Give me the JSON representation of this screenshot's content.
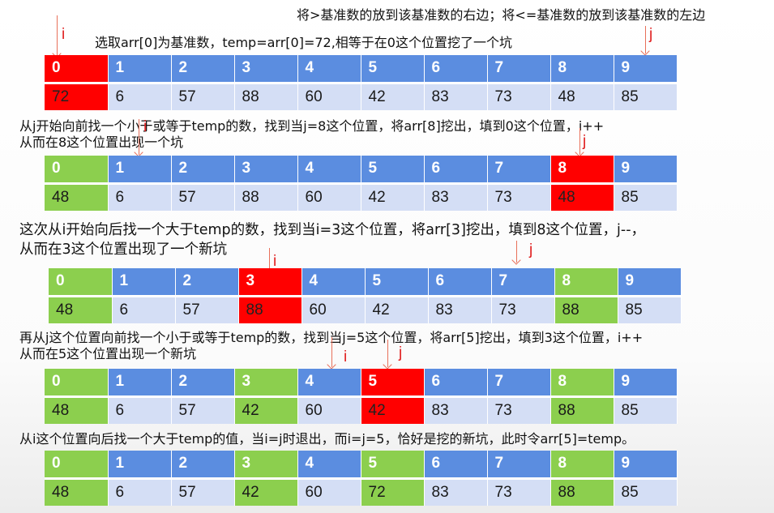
{
  "texts": {
    "t0": "将>基准数的放到该基准数的右边；将<=基准数的放到该基准数的左边",
    "t1": "选取arr[0]为基准数，temp=arr[0]=72,相等于在0这个位置挖了一个坑",
    "t2a": "从j开始向前找一个小于或等于temp的数，找到当j=8这个位置，将arr[8]挖出，填到0这个位置，i++",
    "t2b": "从而在8这个位置出现一个坑",
    "t3a": "这次从i开始向后找一个大于temp的数，找到当i=3这个位置，将arr[3]挖出，填到8这个位置，j--，",
    "t3b": "从而在3这个位置出现了一个新坑",
    "t4a": "再从j这个位置向前找一个小于或等于temp的数，找到当j=5这个位置，将arr[5]挖出，填到3这个位置，i++",
    "t4b": "从而在5这个位置出现一个新坑",
    "t5": "从i这个位置向后找一个大于temp的值，当i=j时退出，而i=j=5，恰好是挖的新坑，此时令arr[5]=temp。"
  },
  "pointer_labels": {
    "i": "i",
    "j": "j"
  },
  "colors": {
    "index_blue": "#5b8de0",
    "value_light": "#d4def5",
    "highlight_red": "#ff0000",
    "filled_green": "#8ccf4e"
  },
  "indices": [
    "0",
    "1",
    "2",
    "3",
    "4",
    "5",
    "6",
    "7",
    "8",
    "9"
  ],
  "tables": [
    {
      "values": [
        "72",
        "6",
        "57",
        "88",
        "60",
        "42",
        "83",
        "73",
        "48",
        "85"
      ],
      "red": [
        0
      ],
      "green": []
    },
    {
      "values": [
        "48",
        "6",
        "57",
        "88",
        "60",
        "42",
        "83",
        "73",
        "48",
        "85"
      ],
      "red": [
        8
      ],
      "green": [
        0
      ]
    },
    {
      "values": [
        "48",
        "6",
        "57",
        "88",
        "60",
        "42",
        "83",
        "73",
        "88",
        "85"
      ],
      "red": [
        3
      ],
      "green": [
        0,
        8
      ]
    },
    {
      "values": [
        "48",
        "6",
        "57",
        "42",
        "60",
        "42",
        "83",
        "73",
        "88",
        "85"
      ],
      "red": [
        5
      ],
      "green": [
        0,
        3,
        8
      ]
    },
    {
      "values": [
        "48",
        "6",
        "57",
        "42",
        "60",
        "72",
        "83",
        "73",
        "88",
        "85"
      ],
      "red": [],
      "green": [
        0,
        3,
        5,
        8
      ]
    }
  ]
}
